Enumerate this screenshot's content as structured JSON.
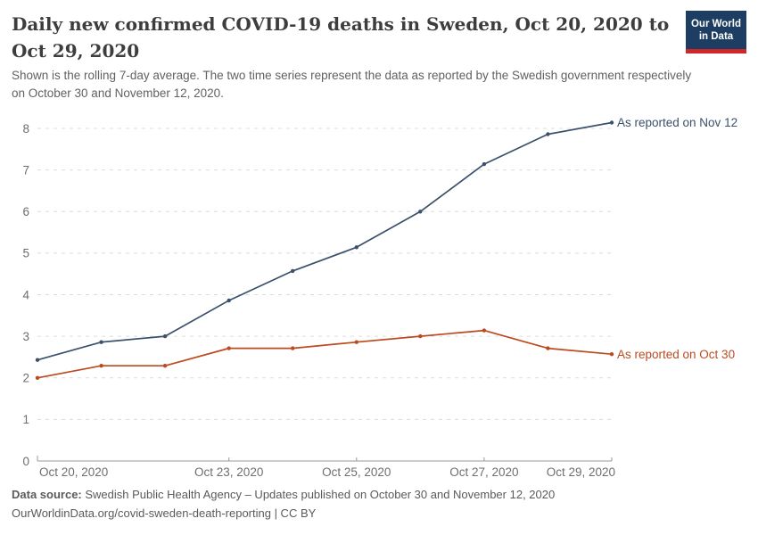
{
  "header": {
    "title": "Daily new confirmed COVID-19 deaths in Sweden, Oct 20, 2020 to Oct 29, 2020",
    "subtitle": "Shown is the rolling 7-day average. The two time series represent the data as reported by the Swedish government respectively on October 30 and November 12, 2020.",
    "logo": {
      "line1": "Our World",
      "line2": "in Data",
      "bg_color": "#1d3d63",
      "bar_color": "#cf2629"
    }
  },
  "chart_data": {
    "type": "line",
    "title": "Daily new confirmed COVID-19 deaths in Sweden, Oct 20, 2020 to Oct 29, 2020",
    "x": [
      "Oct 20, 2020",
      "Oct 21, 2020",
      "Oct 22, 2020",
      "Oct 23, 2020",
      "Oct 24, 2020",
      "Oct 25, 2020",
      "Oct 26, 2020",
      "Oct 27, 2020",
      "Oct 28, 2020",
      "Oct 29, 2020"
    ],
    "x_ticks": [
      {
        "index": 0,
        "label": "Oct 20, 2020",
        "align": "start"
      },
      {
        "index": 3,
        "label": "Oct 23, 2020",
        "align": "middle"
      },
      {
        "index": 5,
        "label": "Oct 25, 2020",
        "align": "middle"
      },
      {
        "index": 7,
        "label": "Oct 27, 2020",
        "align": "middle"
      },
      {
        "index": 9,
        "label": "Oct 29, 2020",
        "align": "end"
      }
    ],
    "ylim": [
      0,
      8
    ],
    "yticks": [
      0,
      1,
      2,
      3,
      4,
      5,
      6,
      7,
      8
    ],
    "grid": "horizontal-dashed",
    "legend_position": "labels at line ends",
    "series": [
      {
        "name": "As reported on Nov 12",
        "color": "#3a506b",
        "values": [
          2.43,
          2.86,
          3,
          3.86,
          4.57,
          5.14,
          6,
          7.14,
          7.86,
          8.14
        ]
      },
      {
        "name": "As reported on Oct 30",
        "color": "#bc4a20",
        "values": [
          2,
          2.29,
          2.29,
          2.71,
          2.71,
          2.86,
          3,
          3.14,
          2.71,
          2.57
        ]
      }
    ]
  },
  "footer": {
    "source_label": "Data source:",
    "source_text": "Swedish Public Health Agency – Updates published on October 30 and November 12, 2020",
    "credit": "OurWorldinData.org/covid-sweden-death-reporting | CC BY"
  },
  "colors": {
    "grid": "#dcdcdc",
    "axis": "#9a9a9a",
    "tick_label": "#6e6e6e",
    "title_text": "#3d3d3d",
    "subtitle_text": "#616161",
    "footer_text": "#5a5a5a"
  }
}
